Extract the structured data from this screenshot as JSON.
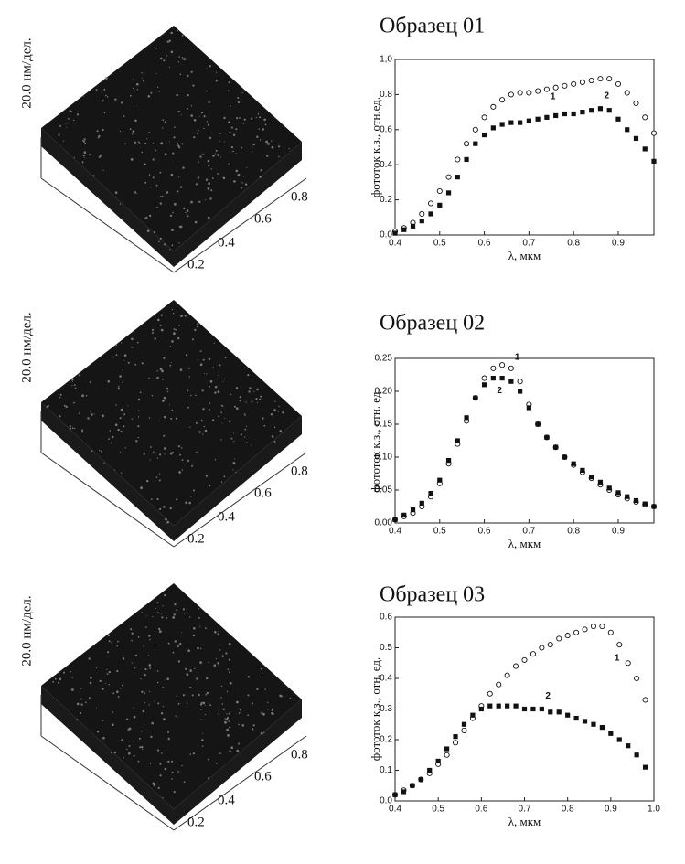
{
  "afm_panels": [
    {
      "z_label": "20.0 нм/дел.",
      "ticks": [
        "0.2",
        "0.4",
        "0.6",
        "0.8"
      ]
    },
    {
      "z_label": "20.0 нм/дел.",
      "ticks": [
        "0.2",
        "0.4",
        "0.6",
        "0.8"
      ]
    },
    {
      "z_label": "20.0 нм/дел.",
      "ticks": [
        "0.2",
        "0.4",
        "0.6",
        "0.8"
      ]
    }
  ],
  "chart_data": [
    {
      "type": "scatter",
      "title": "Образец 01",
      "xlabel": "λ, мкм",
      "ylabel": "фототок к.з., отн.ед.",
      "xlim": [
        0.4,
        0.98
      ],
      "ylim": [
        0,
        1
      ],
      "xticks": [
        0.4,
        0.5,
        0.6,
        0.7,
        0.8,
        0.9
      ],
      "yticks": [
        {
          "value": 0,
          "label": "0.0"
        },
        0.2,
        0.4,
        0.6,
        0.8,
        {
          "value": 1,
          "label": "1,0"
        }
      ],
      "x": [
        0.4,
        0.42,
        0.44,
        0.46,
        0.48,
        0.5,
        0.52,
        0.54,
        0.56,
        0.58,
        0.6,
        0.62,
        0.64,
        0.66,
        0.68,
        0.7,
        0.72,
        0.74,
        0.76,
        0.78,
        0.8,
        0.82,
        0.84,
        0.86,
        0.88,
        0.9,
        0.92,
        0.94,
        0.96,
        0.98
      ],
      "series": [
        {
          "name": "1",
          "color": "#111111",
          "marker": "circle",
          "values": [
            0.02,
            0.04,
            0.07,
            0.12,
            0.18,
            0.25,
            0.33,
            0.43,
            0.52,
            0.6,
            0.67,
            0.73,
            0.77,
            0.8,
            0.81,
            0.81,
            0.82,
            0.83,
            0.84,
            0.85,
            0.86,
            0.87,
            0.88,
            0.89,
            0.89,
            0.86,
            0.81,
            0.75,
            0.67,
            0.58
          ]
        },
        {
          "name": "2",
          "color": "#111111",
          "marker": "square",
          "values": [
            0.01,
            0.03,
            0.05,
            0.08,
            0.12,
            0.17,
            0.24,
            0.33,
            0.43,
            0.52,
            0.57,
            0.61,
            0.63,
            0.64,
            0.64,
            0.65,
            0.66,
            0.67,
            0.68,
            0.69,
            0.69,
            0.7,
            0.71,
            0.72,
            0.71,
            0.66,
            0.6,
            0.55,
            0.49,
            0.42
          ]
        }
      ]
    },
    {
      "type": "scatter",
      "title": "Образец 02",
      "xlabel": "λ, мкм",
      "ylabel": "фототок к.з., отн. ед.",
      "xlim": [
        0.4,
        0.98
      ],
      "ylim": [
        0,
        0.25
      ],
      "xticks": [
        0.4,
        0.5,
        0.6,
        0.7,
        0.8,
        0.9
      ],
      "yticks": [
        {
          "value": 0,
          "label": "0.00"
        },
        0.05,
        {
          "value": 0.1,
          "label": "0.10"
        },
        0.15,
        {
          "value": 0.2,
          "label": "0.20"
        },
        0.25
      ],
      "x": [
        0.4,
        0.42,
        0.44,
        0.46,
        0.48,
        0.5,
        0.52,
        0.54,
        0.56,
        0.58,
        0.6,
        0.62,
        0.64,
        0.66,
        0.68,
        0.7,
        0.72,
        0.74,
        0.76,
        0.78,
        0.8,
        0.82,
        0.84,
        0.86,
        0.88,
        0.9,
        0.92,
        0.94,
        0.96,
        0.98
      ],
      "series": [
        {
          "name": "1",
          "color": "#111111",
          "marker": "circle",
          "values": [
            0.005,
            0.01,
            0.015,
            0.025,
            0.04,
            0.06,
            0.09,
            0.12,
            0.155,
            0.19,
            0.22,
            0.235,
            0.24,
            0.235,
            0.215,
            0.18,
            0.15,
            0.13,
            0.115,
            0.1,
            0.088,
            0.077,
            0.068,
            0.058,
            0.05,
            0.043,
            0.037,
            0.032,
            0.028,
            0.025
          ]
        },
        {
          "name": "2",
          "color": "#111111",
          "marker": "square",
          "values": [
            0.005,
            0.012,
            0.02,
            0.03,
            0.045,
            0.065,
            0.095,
            0.125,
            0.16,
            0.19,
            0.21,
            0.22,
            0.22,
            0.215,
            0.2,
            0.175,
            0.15,
            0.13,
            0.115,
            0.1,
            0.09,
            0.08,
            0.07,
            0.062,
            0.053,
            0.046,
            0.04,
            0.034,
            0.029,
            0.025
          ]
        }
      ]
    },
    {
      "type": "scatter",
      "title": "Образец 03",
      "xlabel": "λ, мкм",
      "ylabel": "фототок к.з., отн. ед.",
      "xlim": [
        0.4,
        1.0
      ],
      "ylim": [
        0,
        0.6
      ],
      "xticks": [
        0.4,
        0.5,
        0.6,
        0.7,
        0.8,
        0.9,
        {
          "value": 1,
          "label": "1.0"
        }
      ],
      "yticks": [
        {
          "value": 0,
          "label": "0.0"
        },
        0.1,
        0.2,
        0.3,
        0.4,
        0.5,
        0.6
      ],
      "x": [
        0.4,
        0.42,
        0.44,
        0.46,
        0.48,
        0.5,
        0.52,
        0.54,
        0.56,
        0.58,
        0.6,
        0.62,
        0.64,
        0.66,
        0.68,
        0.7,
        0.72,
        0.74,
        0.76,
        0.78,
        0.8,
        0.82,
        0.84,
        0.86,
        0.88,
        0.9,
        0.92,
        0.94,
        0.96,
        0.98
      ],
      "series": [
        {
          "name": "1",
          "color": "#111111",
          "marker": "circle",
          "values": [
            0.02,
            0.035,
            0.05,
            0.07,
            0.09,
            0.12,
            0.15,
            0.19,
            0.23,
            0.27,
            0.31,
            0.35,
            0.38,
            0.41,
            0.44,
            0.46,
            0.48,
            0.5,
            0.51,
            0.53,
            0.54,
            0.55,
            0.56,
            0.57,
            0.57,
            0.55,
            0.51,
            0.45,
            0.4,
            0.33
          ]
        },
        {
          "name": "2",
          "color": "#111111",
          "marker": "square",
          "values": [
            0.02,
            0.03,
            0.05,
            0.07,
            0.1,
            0.13,
            0.17,
            0.21,
            0.25,
            0.28,
            0.3,
            0.31,
            0.31,
            0.31,
            0.31,
            0.3,
            0.3,
            0.3,
            0.29,
            0.29,
            0.28,
            0.27,
            0.26,
            0.25,
            0.24,
            0.22,
            0.2,
            0.18,
            0.15,
            0.11
          ]
        }
      ]
    }
  ]
}
